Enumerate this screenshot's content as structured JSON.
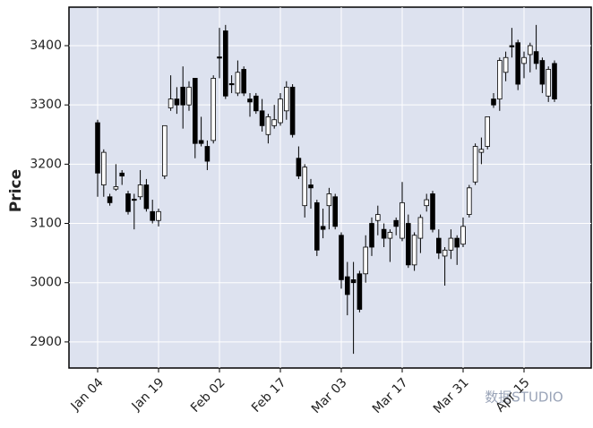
{
  "chart_data": {
    "type": "candlestick",
    "ylabel": "Price",
    "watermark": "数据STUDIO",
    "categories": [
      "Jan 04",
      null,
      null,
      null,
      null,
      null,
      null,
      null,
      null,
      null,
      "Jan 19",
      null,
      null,
      null,
      null,
      null,
      null,
      null,
      null,
      null,
      "Feb 02",
      null,
      null,
      null,
      null,
      null,
      null,
      null,
      null,
      null,
      "Feb 17",
      null,
      null,
      null,
      null,
      null,
      null,
      null,
      null,
      null,
      "Mar 03",
      null,
      null,
      null,
      null,
      null,
      null,
      null,
      null,
      null,
      "Mar 17",
      null,
      null,
      null,
      null,
      null,
      null,
      null,
      null,
      null,
      "Mar 31",
      null,
      null,
      null,
      null,
      null,
      null,
      null,
      null,
      null,
      "Apr 15",
      null,
      null,
      null,
      null,
      null
    ],
    "open": [
      3270,
      3165,
      3145,
      3158,
      3185,
      3150,
      3141,
      3145,
      3165,
      3120,
      3105,
      3180,
      3295,
      3310,
      3330,
      3300,
      3345,
      3240,
      3230,
      3240,
      3381,
      3425,
      3336,
      3320,
      3360,
      3310,
      3315,
      3290,
      3250,
      3265,
      3270,
      3290,
      3330,
      3210,
      3130,
      3165,
      3135,
      3095,
      3130,
      3145,
      3080,
      3010,
      3005,
      3015,
      3015,
      3100,
      3105,
      3090,
      3075,
      3105,
      3075,
      3100,
      3030,
      3075,
      3130,
      3150,
      3075,
      3045,
      3055,
      3075,
      3065,
      3115,
      3170,
      3220,
      3230,
      3310,
      3310,
      3355,
      3400,
      3405,
      3370,
      3385,
      3390,
      3375,
      3315,
      3370
    ],
    "high": [
      3275,
      3225,
      3150,
      3200,
      3190,
      3155,
      3150,
      3190,
      3175,
      3140,
      3125,
      3265,
      3350,
      3330,
      3365,
      3340,
      3345,
      3280,
      3240,
      3350,
      3430,
      3435,
      3350,
      3375,
      3365,
      3320,
      3320,
      3310,
      3285,
      3300,
      3320,
      3340,
      3335,
      3230,
      3200,
      3175,
      3140,
      3125,
      3160,
      3150,
      3085,
      3035,
      3035,
      3020,
      3080,
      3110,
      3130,
      3100,
      3090,
      3110,
      3170,
      3115,
      3085,
      3115,
      3150,
      3155,
      3090,
      3060,
      3090,
      3080,
      3110,
      3165,
      3235,
      3245,
      3280,
      3320,
      3380,
      3390,
      3430,
      3410,
      3390,
      3405,
      3435,
      3380,
      3365,
      3375
    ],
    "low": [
      3145,
      3145,
      3130,
      3155,
      3165,
      3115,
      3090,
      3140,
      3120,
      3100,
      3095,
      3175,
      3290,
      3285,
      3260,
      3290,
      3210,
      3230,
      3190,
      3235,
      3345,
      3310,
      3320,
      3315,
      3315,
      3280,
      3285,
      3255,
      3235,
      3260,
      3265,
      3275,
      3245,
      3175,
      3110,
      3125,
      3045,
      3075,
      3090,
      3090,
      2990,
      2945,
      2880,
      2950,
      3000,
      3045,
      3080,
      3060,
      3035,
      3080,
      3070,
      3025,
      3020,
      3050,
      3120,
      3085,
      3040,
      2995,
      3040,
      3030,
      3060,
      3110,
      3165,
      3200,
      3225,
      3295,
      3290,
      3340,
      3380,
      3325,
      3345,
      3355,
      3360,
      3320,
      3305,
      3305
    ],
    "close": [
      3185,
      3220,
      3135,
      3162,
      3180,
      3120,
      3139,
      3165,
      3125,
      3105,
      3120,
      3265,
      3310,
      3300,
      3300,
      3330,
      3235,
      3235,
      3205,
      3345,
      3379,
      3315,
      3334,
      3355,
      3320,
      3305,
      3290,
      3265,
      3280,
      3275,
      3310,
      3330,
      3250,
      3180,
      3195,
      3160,
      3055,
      3090,
      3150,
      3095,
      3005,
      2980,
      3000,
      2955,
      3060,
      3060,
      3115,
      3075,
      3085,
      3095,
      3135,
      3030,
      3080,
      3110,
      3140,
      3090,
      3050,
      3055,
      3075,
      3060,
      3095,
      3160,
      3230,
      3225,
      3280,
      3300,
      3375,
      3380,
      3398,
      3335,
      3380,
      3400,
      3370,
      3335,
      3360,
      3310
    ],
    "up_color": "#ffffff",
    "down_color": "#000000",
    "edge_color": "#000000",
    "ylim": [
      2856,
      3465
    ],
    "yticks": [
      2900,
      3000,
      3100,
      3200,
      3300,
      3400
    ],
    "grid": true
  }
}
